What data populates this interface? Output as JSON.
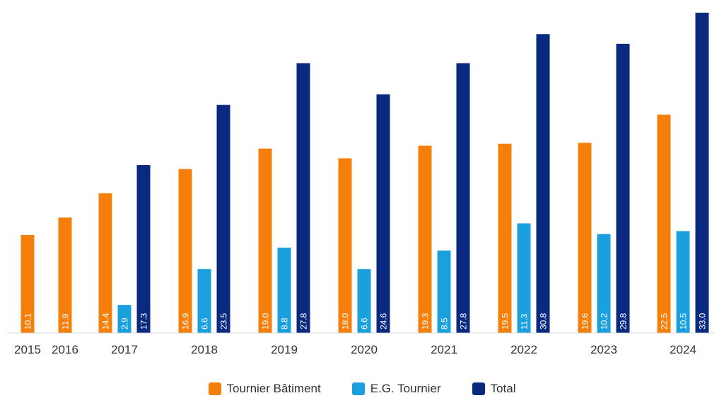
{
  "chart_data": {
    "type": "bar",
    "categories": [
      "2015",
      "2016",
      "2017",
      "2018",
      "2019",
      "2020",
      "2021",
      "2022",
      "2023",
      "2024"
    ],
    "series": [
      {
        "name": "Tournier Bâtiment",
        "color": "#F47F0A",
        "values": [
          10.1,
          11.9,
          14.4,
          16.9,
          19.0,
          18.0,
          19.3,
          19.5,
          19.6,
          22.5
        ]
      },
      {
        "name": "E.G. Tournier",
        "color": "#1AA0DC",
        "values": [
          null,
          null,
          2.9,
          6.6,
          8.8,
          6.6,
          8.5,
          11.3,
          10.2,
          10.5
        ]
      },
      {
        "name": "Total",
        "color": "#0A2A80",
        "values": [
          null,
          null,
          17.3,
          23.5,
          27.8,
          24.6,
          27.8,
          30.8,
          29.8,
          33.0
        ]
      }
    ],
    "title": "",
    "xlabel": "",
    "ylabel": "",
    "ylim": [
      0,
      33
    ],
    "grid": false,
    "legend_position": "bottom",
    "data_labels": "inside-bar-bottom-vertical"
  }
}
